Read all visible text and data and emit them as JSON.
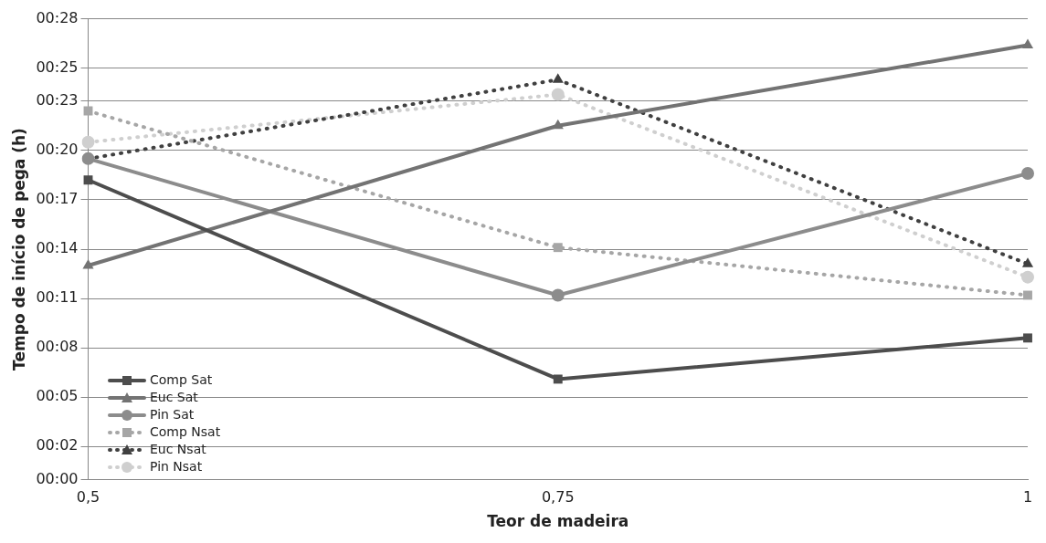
{
  "chart_data": {
    "type": "line",
    "xlabel": "Teor de madeira",
    "ylabel": "Tempo de início de pega (h)",
    "categories": [
      "0,5",
      "0,75",
      "1"
    ],
    "ylim": [
      0,
      28
    ],
    "yticks": [
      {
        "value": 0,
        "label": "00:00"
      },
      {
        "value": 2,
        "label": "00:02"
      },
      {
        "value": 5,
        "label": "00:05"
      },
      {
        "value": 8,
        "label": "00:08"
      },
      {
        "value": 11,
        "label": "00:11"
      },
      {
        "value": 14,
        "label": "00:14"
      },
      {
        "value": 17,
        "label": "00:17"
      },
      {
        "value": 20,
        "label": "00:20"
      },
      {
        "value": 23,
        "label": "00:23"
      },
      {
        "value": 25,
        "label": "00:25"
      },
      {
        "value": 28,
        "label": "00:28"
      }
    ],
    "grid": "y",
    "legend": "bottom left",
    "series": [
      {
        "name": "Comp Sat",
        "color": "#4d4d4d",
        "marker": "square",
        "line_style": "solid",
        "values": [
          18.2,
          6.1,
          8.6
        ]
      },
      {
        "name": "Euc Sat",
        "color": "#737373",
        "marker": "triangle",
        "line_style": "solid",
        "values": [
          13.0,
          21.5,
          26.4
        ]
      },
      {
        "name": "Pin Sat",
        "color": "#8c8c8c",
        "marker": "circle",
        "line_style": "solid",
        "values": [
          19.5,
          11.2,
          18.6
        ]
      },
      {
        "name": "Comp Nsat",
        "color": "#a6a6a6",
        "marker": "square",
        "line_style": "dotted",
        "values": [
          22.4,
          14.1,
          11.2
        ]
      },
      {
        "name": "Euc Nsat",
        "color": "#404040",
        "marker": "triangle",
        "line_style": "dotted",
        "values": [
          19.5,
          24.3,
          13.1
        ]
      },
      {
        "name": "Pin Nsat",
        "color": "#cfcfcf",
        "marker": "circle",
        "line_style": "dotted",
        "values": [
          20.5,
          23.4,
          12.3
        ]
      }
    ]
  }
}
